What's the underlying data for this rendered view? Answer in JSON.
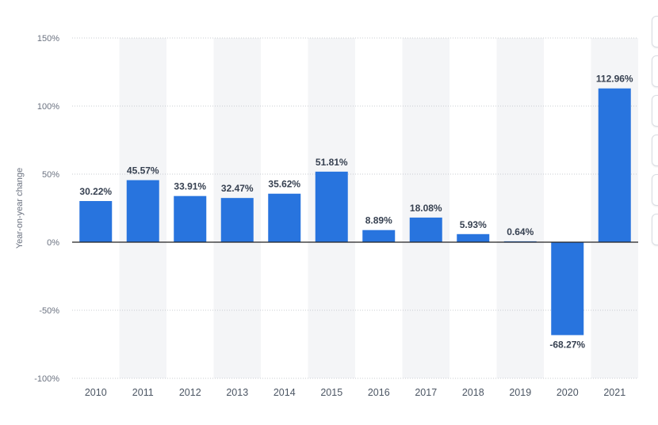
{
  "chart_data": {
    "type": "bar",
    "categories": [
      "2010",
      "2011",
      "2012",
      "2013",
      "2014",
      "2015",
      "2016",
      "2017",
      "2018",
      "2019",
      "2020",
      "2021"
    ],
    "values": [
      30.22,
      45.57,
      33.91,
      32.47,
      35.62,
      51.81,
      8.89,
      18.08,
      5.93,
      0.64,
      -68.27,
      112.96
    ],
    "data_labels": [
      "30.22%",
      "45.57%",
      "33.91%",
      "32.47%",
      "35.62%",
      "51.81%",
      "8.89%",
      "18.08%",
      "5.93%",
      "0.64%",
      "-68.27%",
      "112.96%"
    ],
    "ylabel": "Year-on-year change",
    "xlabel": "",
    "title": "",
    "ylim": [
      -100,
      150
    ],
    "y_ticks": [
      150,
      100,
      50,
      0,
      -50,
      -100
    ],
    "y_tick_labels": [
      "150%",
      "100%",
      "50%",
      "0%",
      "-50%",
      "-100%"
    ],
    "grid": true,
    "legend": "none",
    "colors": {
      "bar": "#2874de",
      "alt_band": "#f4f5f7",
      "grid": "#c9ccd1",
      "zero_line": "#222222"
    }
  }
}
